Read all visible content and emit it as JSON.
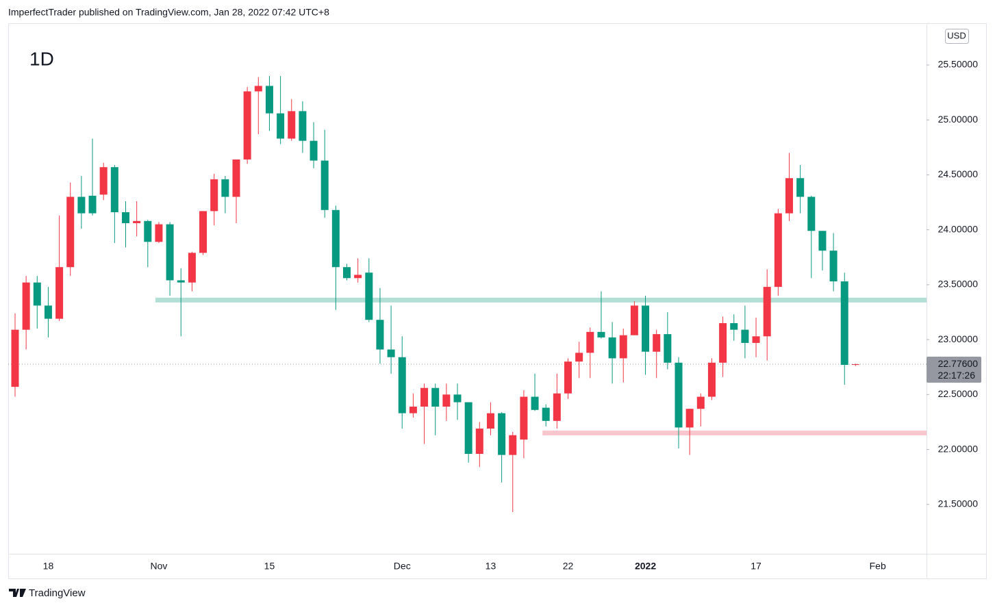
{
  "header": {
    "publisher": "ImperfectTrader published on TradingView.com, Jan 28, 2022 07:42 UTC+8"
  },
  "footer": {
    "brand": "TradingView"
  },
  "chart_data": {
    "type": "candlestick",
    "interval": "1D",
    "currency": "USD",
    "categories": [
      null,
      null,
      null,
      "18",
      null,
      null,
      null,
      null,
      null,
      null,
      null,
      null,
      null,
      "Nov",
      null,
      null,
      null,
      null,
      null,
      null,
      null,
      null,
      null,
      "15",
      null,
      null,
      null,
      null,
      null,
      null,
      null,
      null,
      null,
      null,
      null,
      "Dec",
      null,
      null,
      null,
      null,
      null,
      null,
      null,
      "13",
      null,
      null,
      null,
      null,
      null,
      null,
      "22",
      null,
      null,
      null,
      null,
      null,
      null,
      "2022",
      null,
      null,
      null,
      null,
      null,
      null,
      null,
      null,
      null,
      "17",
      null,
      null,
      null,
      null,
      null,
      null,
      null,
      null,
      null,
      null,
      "Feb"
    ],
    "open": [
      22.57,
      23.09,
      23.52,
      23.31,
      23.19,
      23.66,
      24.3,
      24.31,
      24.32,
      24.57,
      24.16,
      24.06,
      24.08,
      23.89,
      24.05,
      23.54,
      23.52,
      23.79,
      24.17,
      24.46,
      24.3,
      24.64,
      25.26,
      25.31,
      25.06,
      24.83,
      25.08,
      24.81,
      24.63,
      24.18,
      23.66,
      23.56,
      23.61,
      23.18,
      22.91,
      22.84,
      22.33,
      22.39,
      22.56,
      22.39,
      22.5,
      22.43,
      21.96,
      22.19,
      22.33,
      21.95,
      22.09,
      22.48,
      22.38,
      22.26,
      22.51,
      22.8,
      22.88,
      23.07,
      23.02,
      22.83,
      23.04,
      23.31,
      22.89,
      23.05,
      22.79,
      22.2,
      22.37,
      22.48,
      22.79,
      23.15,
      23.09,
      22.97,
      23.03,
      23.48,
      24.15,
      24.47,
      24.3,
      23.99,
      23.81,
      23.53,
      22.77,
      null,
      null
    ],
    "high": [
      23.24,
      23.58,
      23.58,
      23.48,
      24.13,
      24.43,
      24.49,
      24.83,
      24.61,
      24.59,
      24.26,
      24.26,
      24.09,
      24.07,
      24.07,
      23.65,
      23.8,
      24.17,
      24.51,
      24.49,
      24.64,
      25.3,
      25.39,
      25.4,
      25.4,
      25.19,
      25.17,
      24.98,
      24.91,
      24.22,
      23.69,
      23.74,
      23.74,
      23.47,
      23.31,
      23.03,
      22.51,
      22.6,
      22.6,
      22.6,
      22.6,
      22.43,
      22.25,
      22.43,
      22.34,
      22.16,
      22.54,
      22.69,
      22.41,
      22.69,
      22.83,
      22.98,
      23.11,
      23.44,
      23.16,
      23.1,
      23.35,
      23.4,
      23.09,
      23.25,
      22.84,
      22.37,
      22.51,
      22.83,
      23.21,
      23.23,
      23.31,
      23.2,
      23.64,
      24.19,
      24.7,
      24.59,
      24.31,
      23.99,
      23.97,
      23.61,
      22.78,
      null,
      null
    ],
    "low": [
      22.48,
      22.91,
      23.1,
      23.02,
      23.17,
      23.58,
      24.01,
      24.13,
      24.27,
      23.88,
      23.84,
      23.94,
      23.66,
      23.88,
      23.4,
      23.03,
      23.44,
      23.77,
      24.04,
      24.15,
      24.06,
      24.6,
      24.87,
      24.9,
      24.78,
      24.81,
      24.7,
      24.56,
      24.11,
      23.27,
      23.54,
      23.52,
      23.16,
      22.78,
      22.69,
      22.19,
      22.29,
      22.05,
      22.13,
      22.26,
      22.27,
      21.88,
      21.84,
      22.13,
      21.7,
      21.43,
      21.92,
      22.35,
      22.21,
      22.19,
      22.46,
      22.65,
      22.65,
      23.01,
      22.6,
      22.61,
      23.04,
      22.68,
      22.65,
      22.73,
      22.01,
      21.95,
      22.21,
      22.45,
      22.66,
      22.99,
      22.83,
      22.84,
      22.81,
      23.4,
      24.08,
      24.15,
      23.56,
      23.63,
      23.44,
      22.59,
      22.76,
      null,
      null
    ],
    "close": [
      23.09,
      23.52,
      23.31,
      23.19,
      23.66,
      24.3,
      24.15,
      24.15,
      24.57,
      24.16,
      24.06,
      24.08,
      23.89,
      24.05,
      23.54,
      23.52,
      23.79,
      24.17,
      24.46,
      24.3,
      24.64,
      25.26,
      25.31,
      25.06,
      24.83,
      25.08,
      24.81,
      24.63,
      24.18,
      23.66,
      23.56,
      23.59,
      23.18,
      22.91,
      22.84,
      22.33,
      22.39,
      22.56,
      22.39,
      22.5,
      22.43,
      21.96,
      22.19,
      22.33,
      21.95,
      22.13,
      22.48,
      22.36,
      22.26,
      22.51,
      22.8,
      22.88,
      23.07,
      23.02,
      22.83,
      23.04,
      23.31,
      22.89,
      23.05,
      22.79,
      22.2,
      22.37,
      22.48,
      22.79,
      23.15,
      23.09,
      22.97,
      23.03,
      23.48,
      24.15,
      24.47,
      24.3,
      23.99,
      23.81,
      23.53,
      22.77,
      22.776,
      null,
      null
    ],
    "up_color": "#f23645",
    "down_color": "#089981",
    "ylim": [
      21.05,
      25.88
    ],
    "yticks": [
      {
        "value": 21.5,
        "label": "21.50000"
      },
      {
        "value": 22,
        "label": "22.00000"
      },
      {
        "value": 22.5,
        "label": "22.50000"
      },
      {
        "value": 23,
        "label": "23.00000"
      },
      {
        "value": 23.5,
        "label": "23.50000"
      },
      {
        "value": 24,
        "label": "24.00000"
      },
      {
        "value": 24.5,
        "label": "24.50000"
      },
      {
        "value": 25,
        "label": "25.00000"
      },
      {
        "value": 25.5,
        "label": "25.50000"
      }
    ],
    "last_price": {
      "value": 22.776,
      "label": "22.77600",
      "countdown": "22:17:26"
    },
    "hlines": [
      {
        "value": 23.36,
        "color": "#b2dfd6",
        "start_index": 13
      },
      {
        "value": 22.15,
        "color": "#f8c6cc",
        "start_index": 48
      }
    ]
  }
}
